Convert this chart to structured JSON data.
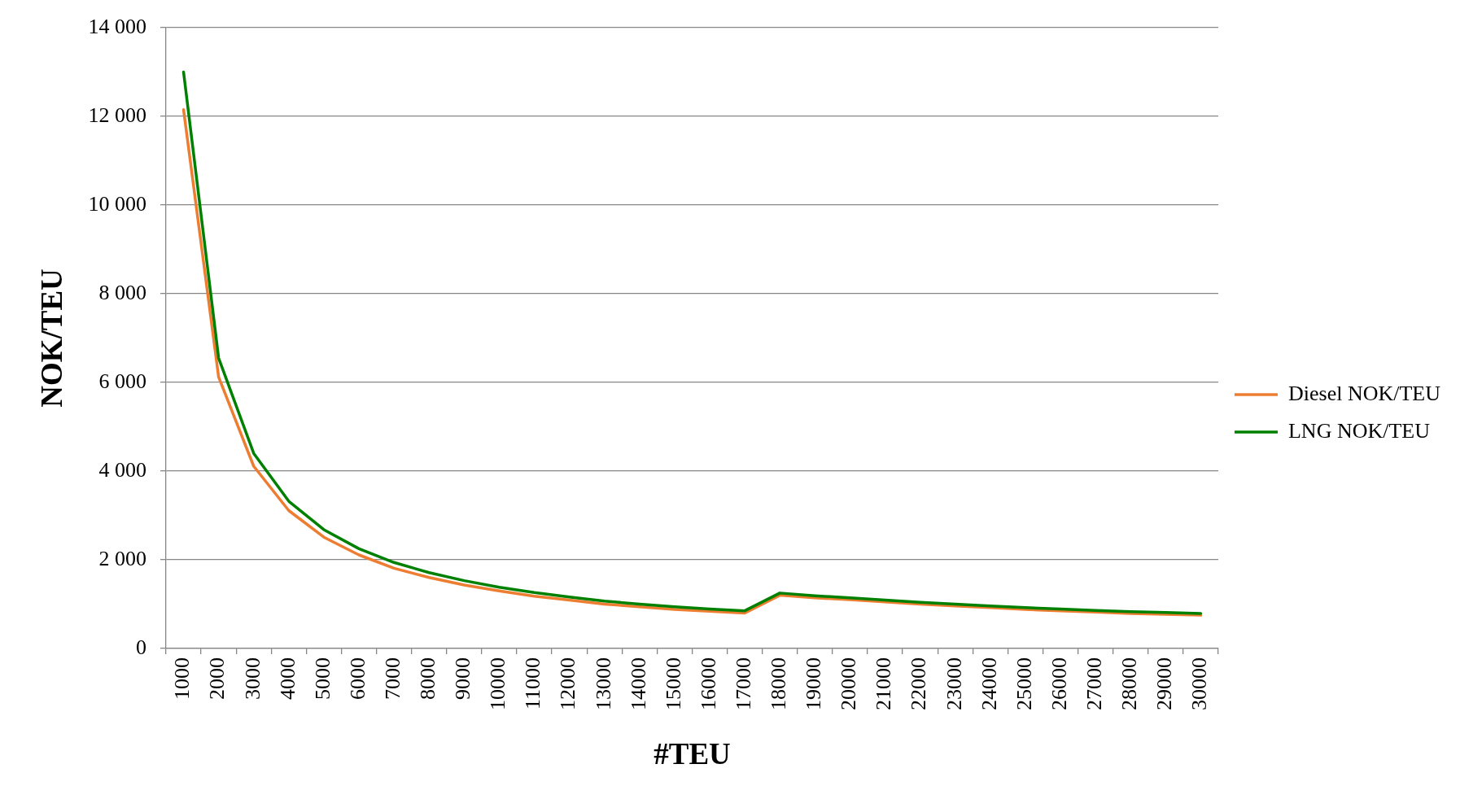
{
  "chart_data": {
    "type": "line",
    "xlabel": "#TEU",
    "ylabel": "NOK/TEU",
    "categories": [
      "1000",
      "2000",
      "3000",
      "4000",
      "5000",
      "6000",
      "7000",
      "8000",
      "9000",
      "10000",
      "11000",
      "12000",
      "13000",
      "14000",
      "15000",
      "16000",
      "17000",
      "18000",
      "19000",
      "20000",
      "21000",
      "22000",
      "23000",
      "24000",
      "25000",
      "26000",
      "27000",
      "28000",
      "29000",
      "30000"
    ],
    "series": [
      {
        "name": "Diesel NOK/TEU",
        "color": "#ed7d31",
        "values": [
          12150,
          6120,
          4110,
          3110,
          2510,
          2110,
          1810,
          1600,
          1430,
          1300,
          1180,
          1090,
          1000,
          940,
          880,
          840,
          800,
          1200,
          1140,
          1100,
          1050,
          1000,
          960,
          920,
          880,
          850,
          820,
          790,
          770,
          750
        ]
      },
      {
        "name": "LNG NOK/TEU",
        "color": "#008000",
        "values": [
          13000,
          6550,
          4400,
          3320,
          2680,
          2250,
          1940,
          1710,
          1530,
          1380,
          1260,
          1160,
          1070,
          1000,
          940,
          890,
          850,
          1250,
          1190,
          1140,
          1090,
          1040,
          1000,
          960,
          920,
          890,
          860,
          830,
          810,
          790
        ]
      }
    ],
    "ylim": [
      0,
      14000
    ],
    "yticks": [
      0,
      {
        "value": 2000,
        "label": "2 000"
      },
      {
        "value": 4000,
        "label": "4 000"
      },
      {
        "value": 6000,
        "label": "6 000"
      },
      {
        "value": 8000,
        "label": "8 000"
      },
      {
        "value": 10000,
        "label": "10 000"
      },
      {
        "value": 12000,
        "label": "12 000"
      },
      {
        "value": 14000,
        "label": "14 000"
      }
    ],
    "grid": "y",
    "legend": "right",
    "marker": "none",
    "line_style": "solid"
  }
}
